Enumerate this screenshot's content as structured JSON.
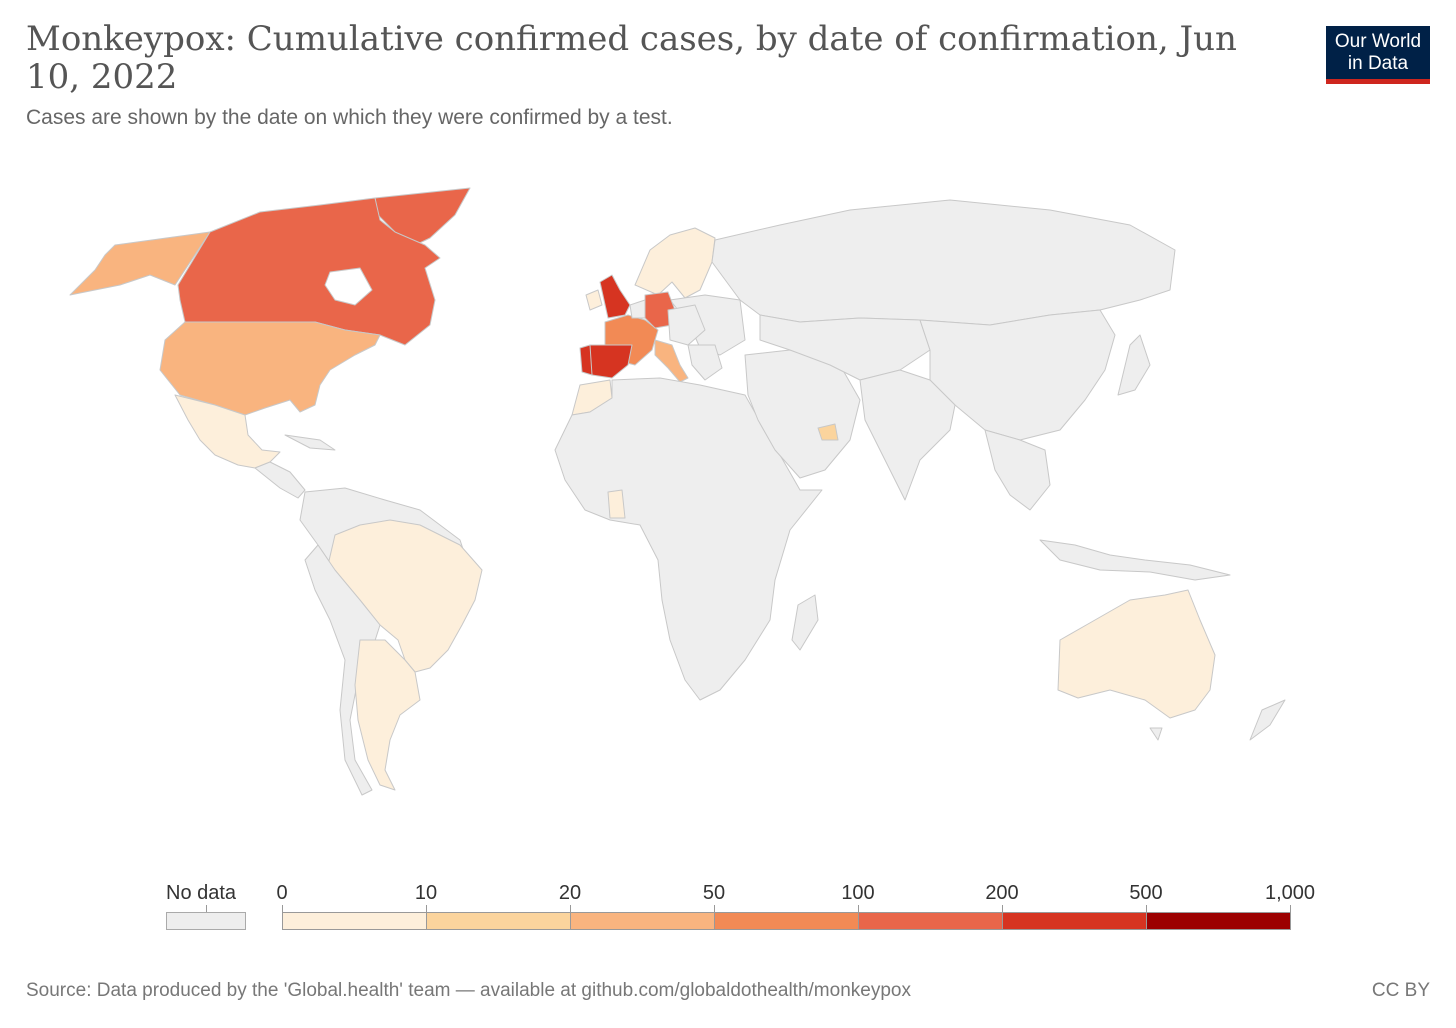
{
  "header": {
    "title": "Monkeypox: Cumulative confirmed cases, by date of confirmation, Jun 10, 2022",
    "subtitle": "Cases are shown by the date on which they were confirmed by a test."
  },
  "logo": {
    "line1": "Our World",
    "line2": "in Data",
    "bg_color": "#002147",
    "accent_color": "#ce261e"
  },
  "legend": {
    "no_data_label": "No data",
    "no_data_color": "#eeeeee",
    "ticks": [
      "0",
      "10",
      "20",
      "50",
      "100",
      "200",
      "500",
      "1,000"
    ],
    "bins": [
      {
        "range": "0–10",
        "color": "#fdefdb"
      },
      {
        "range": "10–20",
        "color": "#fbd49d"
      },
      {
        "range": "20–50",
        "color": "#f9b47f"
      },
      {
        "range": "50–100",
        "color": "#f28a55"
      },
      {
        "range": "100–200",
        "color": "#e9664a"
      },
      {
        "range": "200–500",
        "color": "#d63421"
      },
      {
        "range": "500–1,000",
        "color": "#9c0000"
      }
    ]
  },
  "map_data": {
    "regions": [
      {
        "name": "Canada",
        "bin": "100–200"
      },
      {
        "name": "Greenland",
        "bin": "100–200"
      },
      {
        "name": "United States",
        "bin": "20–50"
      },
      {
        "name": "Alaska",
        "bin": "20–50"
      },
      {
        "name": "Mexico",
        "bin": "0–10"
      },
      {
        "name": "Brazil",
        "bin": "0–10"
      },
      {
        "name": "Argentina",
        "bin": "0–10"
      },
      {
        "name": "United Kingdom",
        "bin": "200–500"
      },
      {
        "name": "Spain",
        "bin": "200–500"
      },
      {
        "name": "Portugal",
        "bin": "200–500"
      },
      {
        "name": "Germany",
        "bin": "100–200"
      },
      {
        "name": "France",
        "bin": "50–100"
      },
      {
        "name": "Italy",
        "bin": "20–50"
      },
      {
        "name": "Netherlands",
        "bin": "50–100"
      },
      {
        "name": "Belgium",
        "bin": "50–100"
      },
      {
        "name": "Ireland",
        "bin": "0–10"
      },
      {
        "name": "Scandinavia",
        "bin": "0–10"
      },
      {
        "name": "Morocco",
        "bin": "0–10"
      },
      {
        "name": "Ghana",
        "bin": "0–10"
      },
      {
        "name": "United Arab Emirates",
        "bin": "10–20"
      },
      {
        "name": "Australia",
        "bin": "0–10"
      }
    ],
    "other_color": "#eeeeee"
  },
  "footer": {
    "source": "Source: Data produced by the 'Global.health' team — available at github.com/globaldothealth/monkeypox",
    "license": "CC BY"
  }
}
